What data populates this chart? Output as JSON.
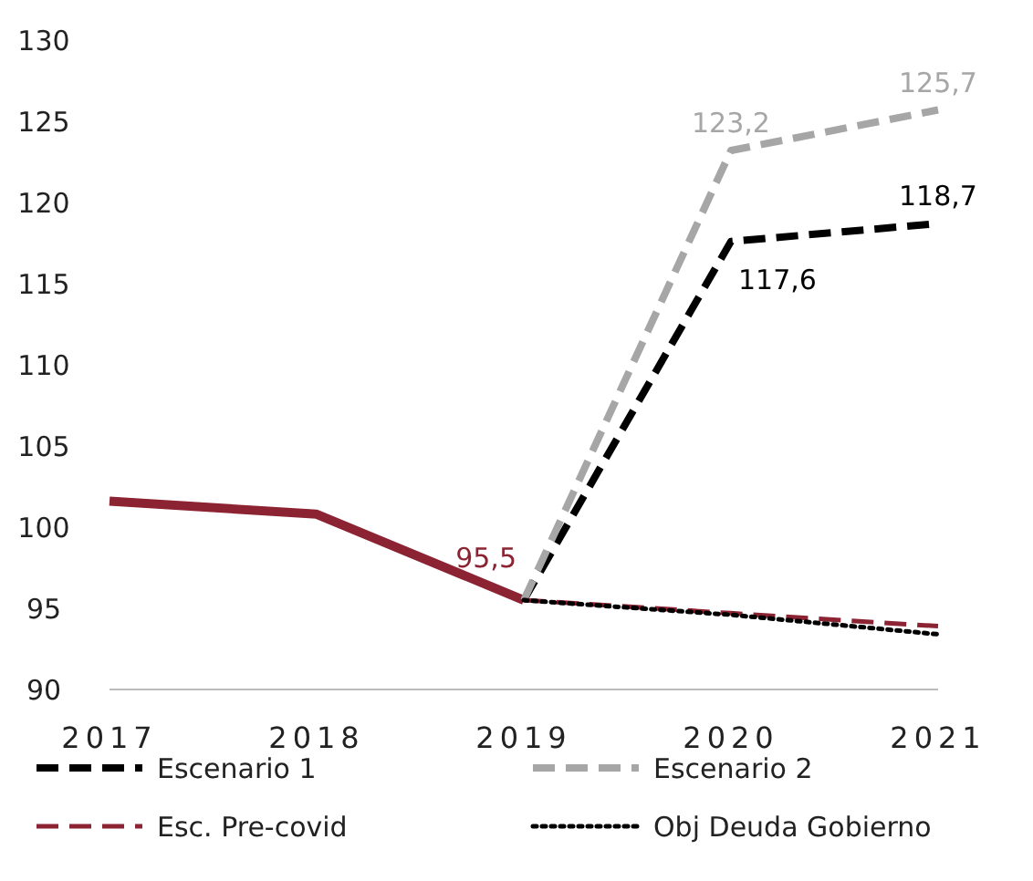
{
  "chart_data": {
    "type": "line",
    "categories": [
      "2017",
      "2018",
      "2019",
      "2020",
      "2021"
    ],
    "ylim": [
      90,
      130
    ],
    "yticks": [
      90,
      95,
      100,
      105,
      110,
      115,
      120,
      125,
      130
    ],
    "grid": false,
    "legend": "bottom",
    "marker": "none",
    "series": [
      {
        "color": "#8b2332",
        "line_style": "solid",
        "values": [
          101.6,
          100.8,
          95.5,
          null,
          null
        ],
        "value_labels": [
          null,
          null,
          "95,5",
          null,
          null
        ]
      },
      {
        "name": "Escenario 1",
        "color": "#000000",
        "line_style": "dashed",
        "values": [
          null,
          null,
          95.5,
          117.6,
          118.7
        ],
        "value_labels": [
          null,
          null,
          null,
          "117,6",
          "118,7"
        ]
      },
      {
        "name": "Escenario 2",
        "color": "#a6a6a6",
        "line_style": "dashed",
        "values": [
          null,
          null,
          95.5,
          123.2,
          125.7
        ],
        "value_labels": [
          null,
          null,
          null,
          "123,2",
          "125,7"
        ]
      },
      {
        "name": "Esc. Pre-covid",
        "color": "#8b2332",
        "line_style": "dashed",
        "values": [
          null,
          null,
          95.5,
          94.7,
          93.9
        ]
      },
      {
        "name": "Obj Deuda Gobierno",
        "color": "#000000",
        "line_style": "dotted",
        "values": [
          null,
          null,
          95.5,
          94.6,
          93.4
        ]
      }
    ]
  }
}
